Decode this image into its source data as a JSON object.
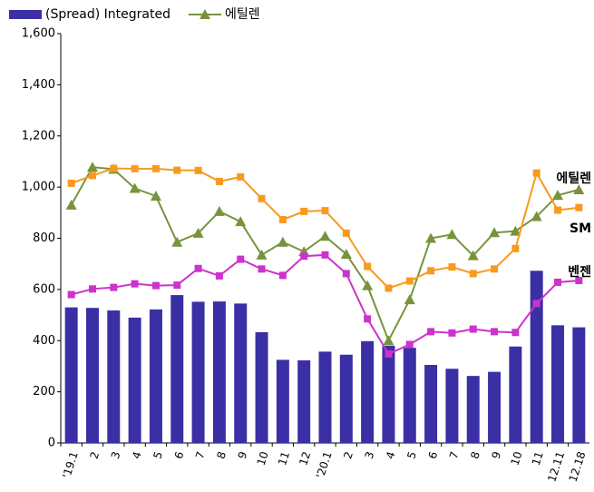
{
  "chart_data": {
    "type": "bar_line",
    "categories": [
      "'19.1",
      "2",
      "3",
      "4",
      "5",
      "6",
      "7",
      "8",
      "9",
      "10",
      "11",
      "12",
      "'20.1",
      "2",
      "3",
      "4",
      "5",
      "6",
      "7",
      "8",
      "9",
      "10",
      "11",
      "12.11",
      "12.18"
    ],
    "series": [
      {
        "name": "(Spread) Integrated",
        "type": "bar",
        "color": "#3b2fa6",
        "values": [
          530,
          528,
          518,
          490,
          522,
          578,
          552,
          553,
          545,
          433,
          325,
          323,
          357,
          345,
          398,
          380,
          372,
          305,
          290,
          262,
          278,
          377,
          673,
          460,
          452
        ]
      },
      {
        "name": "에틸렌",
        "type": "line",
        "marker": "triangle",
        "color": "#77933c",
        "values": [
          930,
          1078,
          1070,
          995,
          965,
          785,
          820,
          905,
          865,
          735,
          785,
          748,
          808,
          738,
          615,
          400,
          560,
          800,
          815,
          732,
          822,
          828,
          885,
          968,
          990
        ]
      },
      {
        "type": "line",
        "marker": "square",
        "color": "#f79a1e",
        "values": [
          1015,
          1045,
          1073,
          1072,
          1072,
          1066,
          1065,
          1022,
          1040,
          955,
          873,
          905,
          908,
          820,
          690,
          605,
          633,
          673,
          688,
          662,
          680,
          760,
          1055,
          910,
          920
        ]
      },
      {
        "type": "line",
        "marker": "square",
        "color": "#cc33cc",
        "values": [
          580,
          602,
          608,
          622,
          615,
          617,
          682,
          653,
          718,
          680,
          655,
          730,
          735,
          662,
          485,
          348,
          385,
          435,
          430,
          445,
          435,
          432,
          545,
          628,
          635
        ]
      }
    ],
    "annotations": [
      "에틸렌",
      "SM",
      "벤젠"
    ],
    "ylim": [
      0,
      1600
    ],
    "yticks": [
      0,
      200,
      400,
      600,
      800,
      {
        "value": 1000,
        "label": "1,000"
      },
      {
        "value": 1200,
        "label": "1,200"
      },
      {
        "value": 1400,
        "label": "1,400"
      },
      {
        "value": 1600,
        "label": "1,600"
      }
    ],
    "legend": "top-left"
  }
}
